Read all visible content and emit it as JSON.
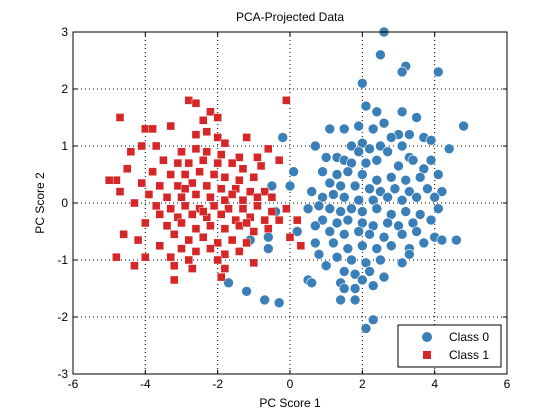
{
  "chart_data": {
    "type": "scatter",
    "title": "PCA-Projected Data",
    "xlabel": "PC Score 1",
    "ylabel": "PC Score 2",
    "xlim": [
      -6,
      6
    ],
    "ylim": [
      -3,
      3
    ],
    "xticks": [
      -6,
      -4,
      -2,
      0,
      2,
      4,
      6
    ],
    "yticks": [
      -3,
      -2,
      -1,
      0,
      1,
      2,
      3
    ],
    "grid": true,
    "grid_style": "dotted",
    "legend_position": "bottom-right",
    "series": [
      {
        "name": "Class 0",
        "marker": "circle",
        "color": "#3a7fb8",
        "points": [
          [
            2.6,
            3.0
          ],
          [
            2.5,
            2.6
          ],
          [
            3.2,
            2.4
          ],
          [
            3.1,
            2.3
          ],
          [
            4.1,
            2.3
          ],
          [
            2.0,
            2.1
          ],
          [
            2.1,
            1.7
          ],
          [
            2.4,
            1.6
          ],
          [
            3.1,
            1.6
          ],
          [
            3.5,
            1.5
          ],
          [
            2.6,
            1.4
          ],
          [
            4.8,
            1.35
          ],
          [
            1.1,
            1.3
          ],
          [
            1.5,
            1.3
          ],
          [
            1.9,
            1.35
          ],
          [
            2.3,
            1.3
          ],
          [
            3.7,
            1.15
          ],
          [
            3.9,
            1.1
          ],
          [
            3.0,
            1.2
          ],
          [
            3.3,
            1.2
          ],
          [
            2.8,
            1.15
          ],
          [
            4.4,
            0.95
          ],
          [
            2.0,
            1.05
          ],
          [
            2.5,
            1.0
          ],
          [
            0.7,
            1.0
          ],
          [
            1.7,
            1.0
          ],
          [
            1.9,
            0.9
          ],
          [
            2.2,
            0.95
          ],
          [
            2.7,
            0.9
          ],
          [
            3.1,
            1.0
          ],
          [
            3.3,
            0.8
          ],
          [
            3.4,
            0.75
          ],
          [
            3.9,
            0.75
          ],
          [
            1.0,
            0.8
          ],
          [
            1.3,
            0.8
          ],
          [
            1.5,
            0.75
          ],
          [
            1.7,
            0.7
          ],
          [
            2.1,
            0.7
          ],
          [
            2.4,
            0.75
          ],
          [
            3.0,
            0.65
          ],
          [
            3.7,
            0.6
          ],
          [
            4.1,
            0.5
          ],
          [
            0.9,
            0.55
          ],
          [
            1.3,
            0.5
          ],
          [
            1.6,
            0.55
          ],
          [
            2.0,
            0.5
          ],
          [
            2.4,
            0.4
          ],
          [
            2.8,
            0.45
          ],
          [
            3.2,
            0.4
          ],
          [
            3.6,
            0.45
          ],
          [
            1.1,
            0.35
          ],
          [
            1.4,
            0.3
          ],
          [
            1.8,
            0.3
          ],
          [
            2.2,
            0.25
          ],
          [
            2.5,
            0.2
          ],
          [
            2.9,
            0.25
          ],
          [
            3.3,
            0.2
          ],
          [
            3.8,
            0.25
          ],
          [
            4.2,
            0.2
          ],
          [
            0.6,
            0.2
          ],
          [
            0.9,
            0.1
          ],
          [
            1.2,
            0.15
          ],
          [
            1.5,
            0.1
          ],
          [
            1.9,
            0.05
          ],
          [
            2.3,
            0.05
          ],
          [
            2.7,
            0.1
          ],
          [
            3.1,
            0.05
          ],
          [
            3.5,
            0.1
          ],
          [
            4.0,
            0.1
          ],
          [
            0.5,
            -0.1
          ],
          [
            0.8,
            -0.05
          ],
          [
            1.1,
            -0.1
          ],
          [
            1.4,
            -0.15
          ],
          [
            1.7,
            -0.1
          ],
          [
            2.0,
            -0.15
          ],
          [
            2.4,
            -0.1
          ],
          [
            2.8,
            -0.2
          ],
          [
            3.2,
            -0.15
          ],
          [
            3.6,
            -0.2
          ],
          [
            4.1,
            -0.1
          ],
          [
            -0.4,
            -0.15
          ],
          [
            0.9,
            -0.3
          ],
          [
            1.3,
            -0.35
          ],
          [
            1.6,
            -0.3
          ],
          [
            2.0,
            -0.35
          ],
          [
            2.3,
            -0.4
          ],
          [
            2.7,
            -0.35
          ],
          [
            3.0,
            -0.4
          ],
          [
            3.4,
            -0.35
          ],
          [
            3.9,
            -0.3
          ],
          [
            0.7,
            -0.4
          ],
          [
            1.1,
            -0.5
          ],
          [
            1.5,
            -0.55
          ],
          [
            1.9,
            -0.5
          ],
          [
            2.2,
            -0.55
          ],
          [
            2.6,
            -0.6
          ],
          [
            3.1,
            -0.55
          ],
          [
            3.5,
            -0.5
          ],
          [
            4.0,
            -0.6
          ],
          [
            4.2,
            -0.65
          ],
          [
            4.6,
            -0.65
          ],
          [
            -0.6,
            -0.6
          ],
          [
            0.2,
            -0.5
          ],
          [
            0.7,
            -0.7
          ],
          [
            1.2,
            -0.7
          ],
          [
            1.6,
            -0.8
          ],
          [
            2.0,
            -0.75
          ],
          [
            2.4,
            -0.8
          ],
          [
            2.8,
            -0.75
          ],
          [
            3.3,
            -0.8
          ],
          [
            3.7,
            -0.7
          ],
          [
            -1.1,
            -0.65
          ],
          [
            0.8,
            -0.9
          ],
          [
            1.3,
            -0.95
          ],
          [
            1.7,
            -1.0
          ],
          [
            2.1,
            -1.05
          ],
          [
            2.5,
            -1.0
          ],
          [
            3.1,
            -1.05
          ],
          [
            3.3,
            -0.9
          ],
          [
            -0.6,
            -0.8
          ],
          [
            1.0,
            -1.1
          ],
          [
            1.5,
            -1.2
          ],
          [
            1.8,
            -1.25
          ],
          [
            2.2,
            -1.2
          ],
          [
            2.6,
            -1.3
          ],
          [
            0.5,
            -1.35
          ],
          [
            0.6,
            -1.4
          ],
          [
            1.4,
            -1.4
          ],
          [
            2.0,
            -1.35
          ],
          [
            1.5,
            -1.5
          ],
          [
            1.8,
            -1.5
          ],
          [
            2.3,
            -1.45
          ],
          [
            -1.7,
            -1.4
          ],
          [
            1.4,
            -1.7
          ],
          [
            1.8,
            -1.7
          ],
          [
            -0.7,
            -1.7
          ],
          [
            -0.3,
            -1.75
          ],
          [
            -1.2,
            -1.55
          ],
          [
            2.3,
            -2.05
          ],
          [
            2.1,
            -2.2
          ],
          [
            0.1,
            0.55
          ],
          [
            0.0,
            0.3
          ],
          [
            -0.5,
            0.3
          ],
          [
            -0.2,
            1.15
          ]
        ]
      },
      {
        "name": "Class 1",
        "marker": "square",
        "color": "#d62728",
        "points": [
          [
            -2.8,
            1.8
          ],
          [
            -2.6,
            1.75
          ],
          [
            -2.2,
            1.6
          ],
          [
            -0.1,
            1.8
          ],
          [
            -4.7,
            1.5
          ],
          [
            -2.4,
            1.45
          ],
          [
            -2.0,
            1.5
          ],
          [
            -4.0,
            1.3
          ],
          [
            -3.8,
            1.3
          ],
          [
            -3.3,
            1.35
          ],
          [
            -2.6,
            1.2
          ],
          [
            -2.3,
            1.25
          ],
          [
            -2.0,
            1.15
          ],
          [
            -1.2,
            1.15
          ],
          [
            -1.8,
            1.05
          ],
          [
            -4.1,
            1.0
          ],
          [
            -3.7,
            1.0
          ],
          [
            -3.0,
            0.9
          ],
          [
            -2.6,
            0.95
          ],
          [
            -2.3,
            0.9
          ],
          [
            -0.6,
            0.95
          ],
          [
            -4.4,
            0.9
          ],
          [
            -1.9,
            0.85
          ],
          [
            -1.4,
            0.8
          ],
          [
            -0.9,
            0.8
          ],
          [
            -3.5,
            0.75
          ],
          [
            -3.1,
            0.7
          ],
          [
            -2.8,
            0.7
          ],
          [
            -2.4,
            0.75
          ],
          [
            -2.0,
            0.7
          ],
          [
            -1.6,
            0.7
          ],
          [
            -1.3,
            0.6
          ],
          [
            -0.3,
            0.75
          ],
          [
            -4.5,
            0.6
          ],
          [
            -3.8,
            0.55
          ],
          [
            -3.3,
            0.5
          ],
          [
            -2.9,
            0.5
          ],
          [
            -2.5,
            0.55
          ],
          [
            -2.1,
            0.5
          ],
          [
            -1.8,
            0.45
          ],
          [
            -1.4,
            0.4
          ],
          [
            -1.0,
            0.45
          ],
          [
            -4.8,
            0.4
          ],
          [
            -5.0,
            0.4
          ],
          [
            -4.1,
            0.35
          ],
          [
            -3.6,
            0.3
          ],
          [
            -3.1,
            0.3
          ],
          [
            -2.7,
            0.35
          ],
          [
            -2.3,
            0.3
          ],
          [
            -1.9,
            0.25
          ],
          [
            -1.5,
            0.25
          ],
          [
            -1.1,
            0.2
          ],
          [
            -0.7,
            0.2
          ],
          [
            -4.7,
            0.2
          ],
          [
            -3.9,
            0.15
          ],
          [
            -3.4,
            0.1
          ],
          [
            -3.0,
            0.1
          ],
          [
            -2.6,
            0.15
          ],
          [
            -2.2,
            0.1
          ],
          [
            -1.8,
            0.05
          ],
          [
            -1.3,
            0.05
          ],
          [
            -0.9,
            0.1
          ],
          [
            -0.5,
            0.1
          ],
          [
            -4.3,
            0.0
          ],
          [
            -3.7,
            -0.05
          ],
          [
            -3.3,
            -0.1
          ],
          [
            -2.9,
            -0.05
          ],
          [
            -2.5,
            -0.1
          ],
          [
            -2.1,
            -0.05
          ],
          [
            -1.7,
            -0.1
          ],
          [
            -1.3,
            -0.1
          ],
          [
            -0.9,
            -0.05
          ],
          [
            -0.5,
            -0.15
          ],
          [
            -0.1,
            -0.1
          ],
          [
            -3.6,
            -0.2
          ],
          [
            -3.1,
            -0.25
          ],
          [
            -2.7,
            -0.2
          ],
          [
            -2.3,
            -0.25
          ],
          [
            -1.9,
            -0.2
          ],
          [
            -1.5,
            -0.3
          ],
          [
            -1.1,
            -0.25
          ],
          [
            -0.7,
            -0.3
          ],
          [
            -0.3,
            -0.3
          ],
          [
            0.2,
            -0.3
          ],
          [
            -4.0,
            -0.35
          ],
          [
            -3.4,
            -0.4
          ],
          [
            -3.0,
            -0.35
          ],
          [
            -2.6,
            -0.45
          ],
          [
            -2.2,
            -0.4
          ],
          [
            -1.8,
            -0.45
          ],
          [
            -1.4,
            -0.4
          ],
          [
            -1.0,
            -0.5
          ],
          [
            -0.6,
            -0.45
          ],
          [
            0.0,
            -0.6
          ],
          [
            -4.6,
            -0.55
          ],
          [
            -4.2,
            -0.65
          ],
          [
            -3.2,
            -0.55
          ],
          [
            -2.8,
            -0.65
          ],
          [
            -2.4,
            -0.6
          ],
          [
            -2.0,
            -0.7
          ],
          [
            -1.6,
            -0.65
          ],
          [
            -1.2,
            -0.7
          ],
          [
            0.3,
            -0.75
          ],
          [
            -3.6,
            -0.75
          ],
          [
            -3.0,
            -0.8
          ],
          [
            -2.6,
            -0.85
          ],
          [
            -2.2,
            -0.8
          ],
          [
            -1.8,
            -0.9
          ],
          [
            -1.4,
            -0.85
          ],
          [
            -4.8,
            -0.95
          ],
          [
            -4.0,
            -0.95
          ],
          [
            -3.3,
            -0.95
          ],
          [
            -2.8,
            -1.0
          ],
          [
            -2.0,
            -1.0
          ],
          [
            -2.7,
            -1.15
          ],
          [
            -1.8,
            -1.15
          ],
          [
            -1.0,
            -1.05
          ],
          [
            -3.2,
            -1.1
          ],
          [
            -4.3,
            -1.1
          ],
          [
            -1.9,
            -1.3
          ],
          [
            -3.2,
            -1.35
          ],
          [
            -2.4,
            -0.15
          ],
          [
            -1.6,
            0.15
          ],
          [
            -1.2,
            -0.35
          ],
          [
            -0.8,
            0.65
          ],
          [
            -2.9,
            0.25
          ]
        ]
      }
    ]
  }
}
